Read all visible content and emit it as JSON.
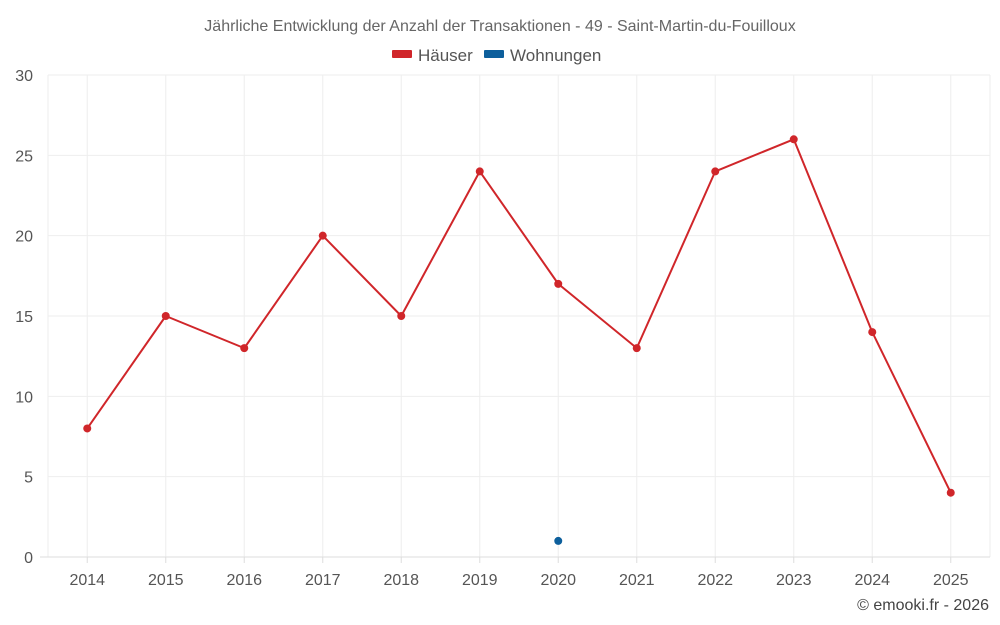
{
  "chart_data": {
    "type": "line",
    "title": "Jährliche Entwicklung der Anzahl der Transaktionen - 49 - Saint-Martin-du-Fouilloux",
    "categories": [
      "2014",
      "2015",
      "2016",
      "2017",
      "2018",
      "2019",
      "2020",
      "2021",
      "2022",
      "2023",
      "2024",
      "2025"
    ],
    "series": [
      {
        "name": "Häuser",
        "color": "#d0262a",
        "values": [
          8,
          15,
          13,
          20,
          15,
          24,
          17,
          13,
          24,
          26,
          14,
          4
        ]
      },
      {
        "name": "Wohnungen",
        "color": "#0d5f9c",
        "values": [
          null,
          null,
          null,
          null,
          null,
          null,
          1,
          null,
          null,
          null,
          null,
          null
        ]
      }
    ],
    "ylim": [
      0,
      30
    ],
    "yticks": [
      0,
      5,
      10,
      15,
      20,
      25,
      30
    ],
    "xlabel": "",
    "ylabel": "",
    "grid": true,
    "legend_position": "top-center"
  },
  "credit": "© emooki.fr - 2026"
}
